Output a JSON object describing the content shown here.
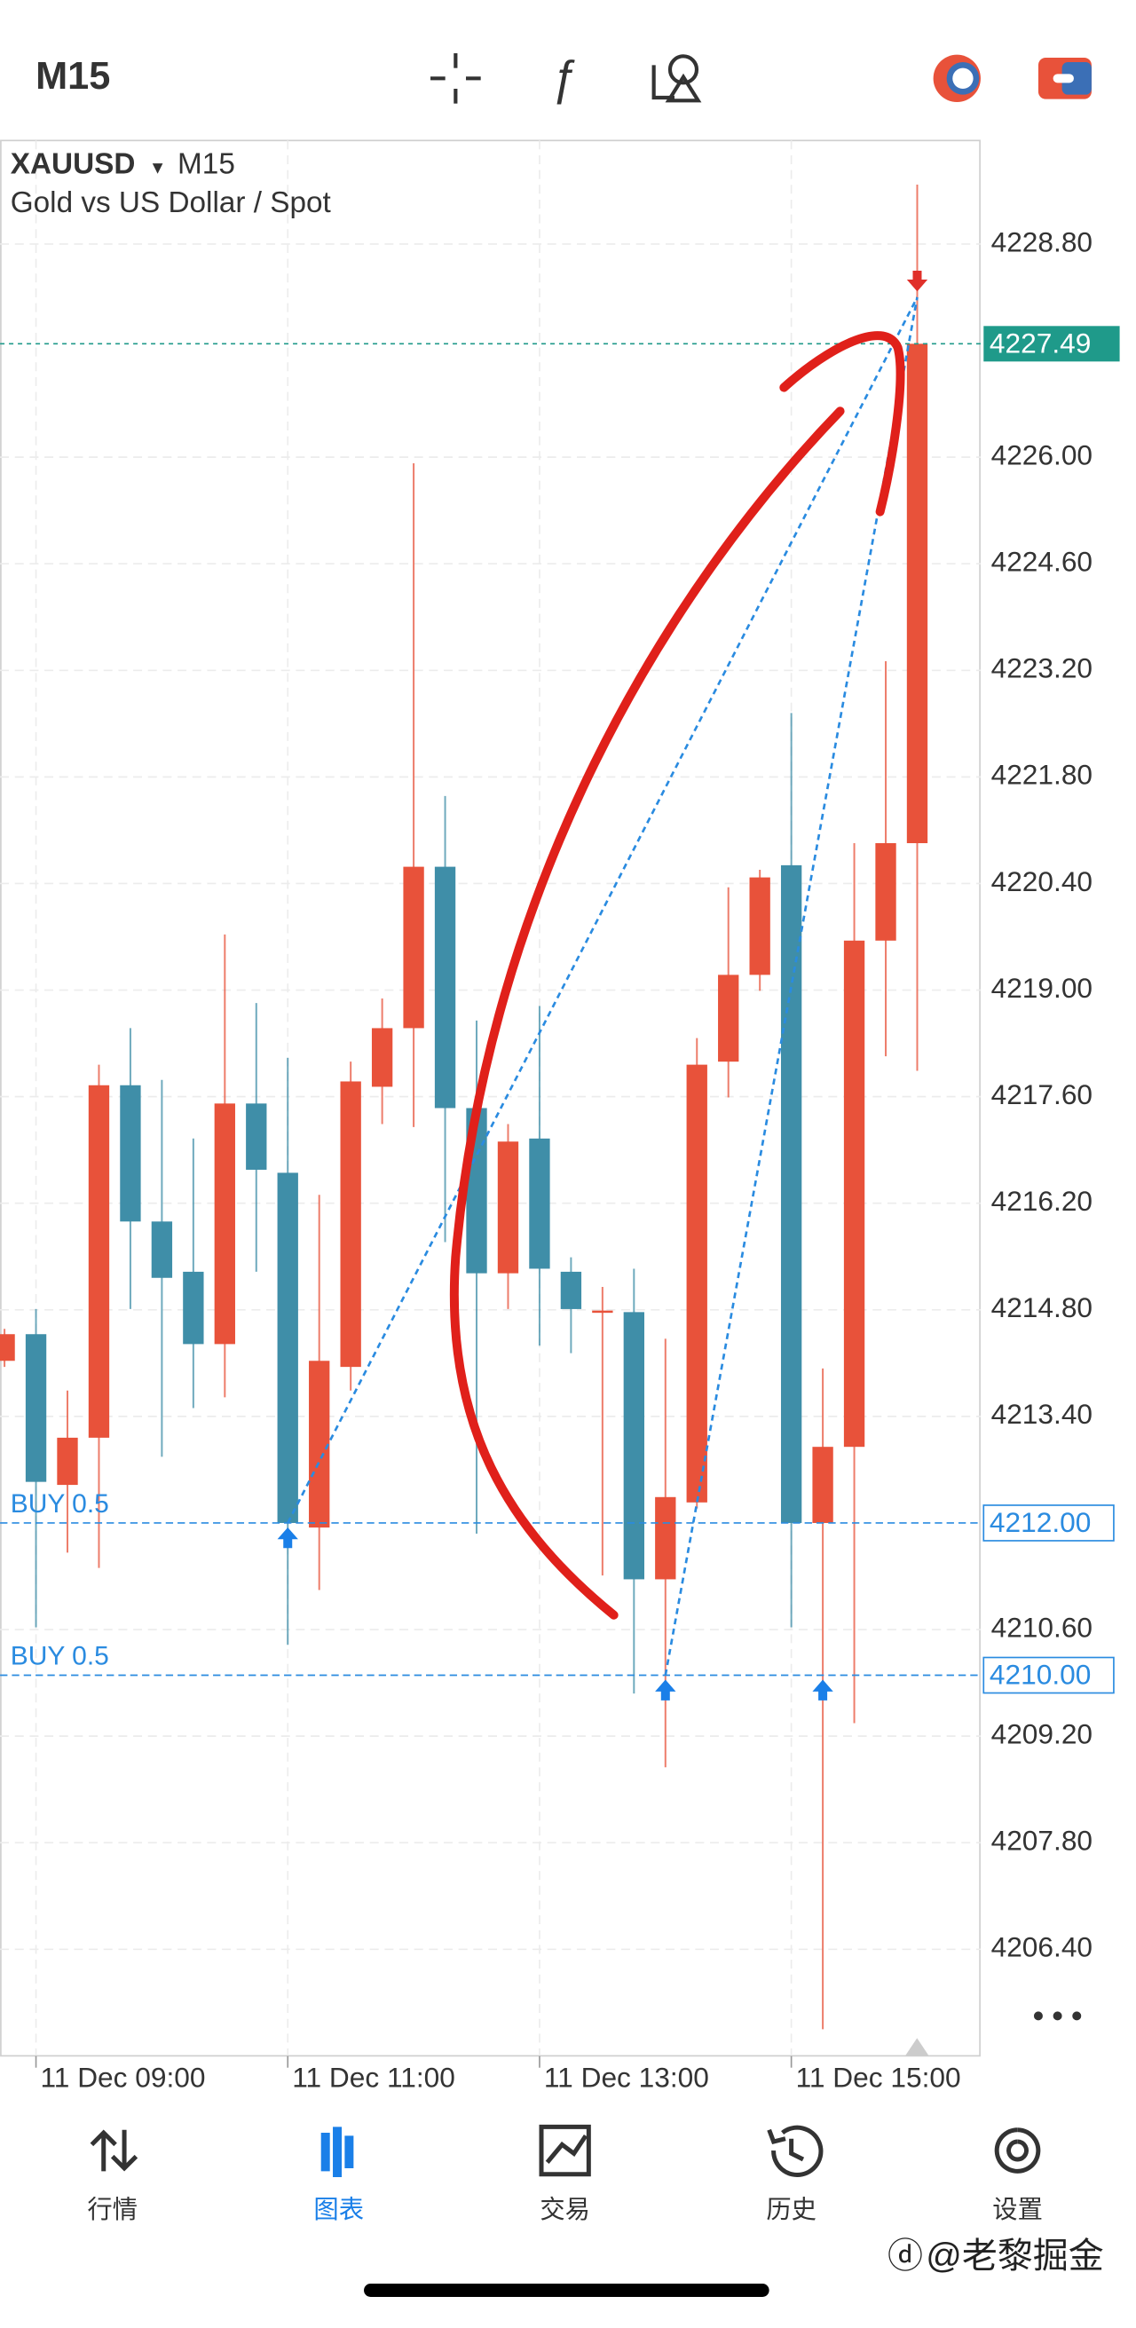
{
  "header": {
    "timeframe": "M15"
  },
  "chart_data": {
    "type": "candlestick",
    "symbol": "XAUUSD",
    "timeframe": "M15",
    "description": "Gold vs US Dollar / Spot",
    "up_color": "#e8523a",
    "down_color": "#3f8ea8",
    "grid": true,
    "candles": {
      "open": [
        4214.13,
        4214.48,
        4212.5,
        4213.12,
        4217.75,
        4215.96,
        4215.3,
        4214.35,
        4217.51,
        4216.6,
        4211.94,
        4214.05,
        4217.73,
        4218.5,
        4220.62,
        4217.45,
        4215.28,
        4217.05,
        4215.3,
        4214.77,
        4214.77,
        4211.26,
        4212.27,
        4218.06,
        4219.2,
        4220.64,
        4212.0,
        4213.0,
        4219.65,
        4220.93
      ],
      "high": [
        4214.55,
        4214.81,
        4213.74,
        4218.02,
        4218.5,
        4217.82,
        4217.05,
        4219.73,
        4218.83,
        4218.11,
        4216.31,
        4218.06,
        4218.89,
        4225.92,
        4221.55,
        4218.6,
        4217.24,
        4218.79,
        4215.49,
        4215.1,
        4215.34,
        4214.42,
        4218.37,
        4220.35,
        4220.58,
        4222.64,
        4214.03,
        4220.93,
        4223.32,
        4229.58
      ],
      "low": [
        4214.05,
        4210.63,
        4211.61,
        4211.41,
        4214.81,
        4212.87,
        4213.51,
        4213.65,
        4215.3,
        4210.4,
        4211.12,
        4213.74,
        4217.24,
        4217.2,
        4215.69,
        4211.86,
        4214.81,
        4214.33,
        4214.23,
        4211.31,
        4209.76,
        4208.79,
        4212.19,
        4217.59,
        4218.99,
        4210.63,
        4205.35,
        4209.37,
        4218.13,
        4217.94
      ],
      "close": [
        4214.48,
        4212.54,
        4213.12,
        4217.75,
        4215.96,
        4215.22,
        4214.35,
        4217.51,
        4216.64,
        4212.0,
        4214.13,
        4217.8,
        4218.5,
        4220.62,
        4217.45,
        4215.28,
        4217.01,
        4215.34,
        4214.81,
        4214.79,
        4211.26,
        4212.34,
        4218.02,
        4219.2,
        4220.48,
        4212.0,
        4213.0,
        4219.65,
        4220.93,
        4227.49
      ]
    },
    "ylim": [
      4205.0,
      4230.16
    ],
    "yticks": [
      {
        "value": 4206.4,
        "label": "4206.40"
      },
      {
        "value": 4207.8,
        "label": "4207.80"
      },
      {
        "value": 4209.2,
        "label": "4209.20"
      },
      {
        "value": 4210.6,
        "label": "4210.60"
      },
      {
        "value": 4213.4,
        "label": "4213.40"
      },
      {
        "value": 4214.8,
        "label": "4214.80"
      },
      {
        "value": 4216.2,
        "label": "4216.20"
      },
      {
        "value": 4217.6,
        "label": "4217.60"
      },
      {
        "value": 4219,
        "label": "4219.00"
      },
      {
        "value": 4220.4,
        "label": "4220.40"
      },
      {
        "value": 4221.8,
        "label": "4221.80"
      },
      {
        "value": 4223.2,
        "label": "4223.20"
      },
      {
        "value": 4224.6,
        "label": "4224.60"
      },
      {
        "value": 4226,
        "label": "4226.00"
      },
      {
        "value": 4228.8,
        "label": "4228.80"
      }
    ],
    "xticks": [
      {
        "value": 1,
        "label": "11 Dec 09:00"
      },
      {
        "value": 9,
        "label": "11 Dec 11:00"
      },
      {
        "value": 17,
        "label": "11 Dec 13:00"
      },
      {
        "value": 25,
        "label": "11 Dec 15:00"
      }
    ],
    "price": {
      "value": 4227.49,
      "label": "4227.49"
    },
    "orders": [
      {
        "name": "BUY 0.5",
        "value": 4212.0,
        "label": "4212.00"
      },
      {
        "name": "BUY 0.5",
        "value": 4210.0,
        "label": "4210.00"
      }
    ],
    "buy_marks": [
      {
        "index": 9,
        "price": 4212.0
      },
      {
        "index": 21,
        "price": 4210.0
      },
      {
        "index": 26,
        "price": 4210.0
      }
    ],
    "sell_marks": [
      {
        "index": 29,
        "price": 4228.1
      }
    ]
  },
  "nav": [
    {
      "label": "行情"
    },
    {
      "label": "图表"
    },
    {
      "label": "交易"
    },
    {
      "label": "历史"
    },
    {
      "label": "设置"
    }
  ],
  "active_tab": 1,
  "watermark": "@老黎掘金"
}
